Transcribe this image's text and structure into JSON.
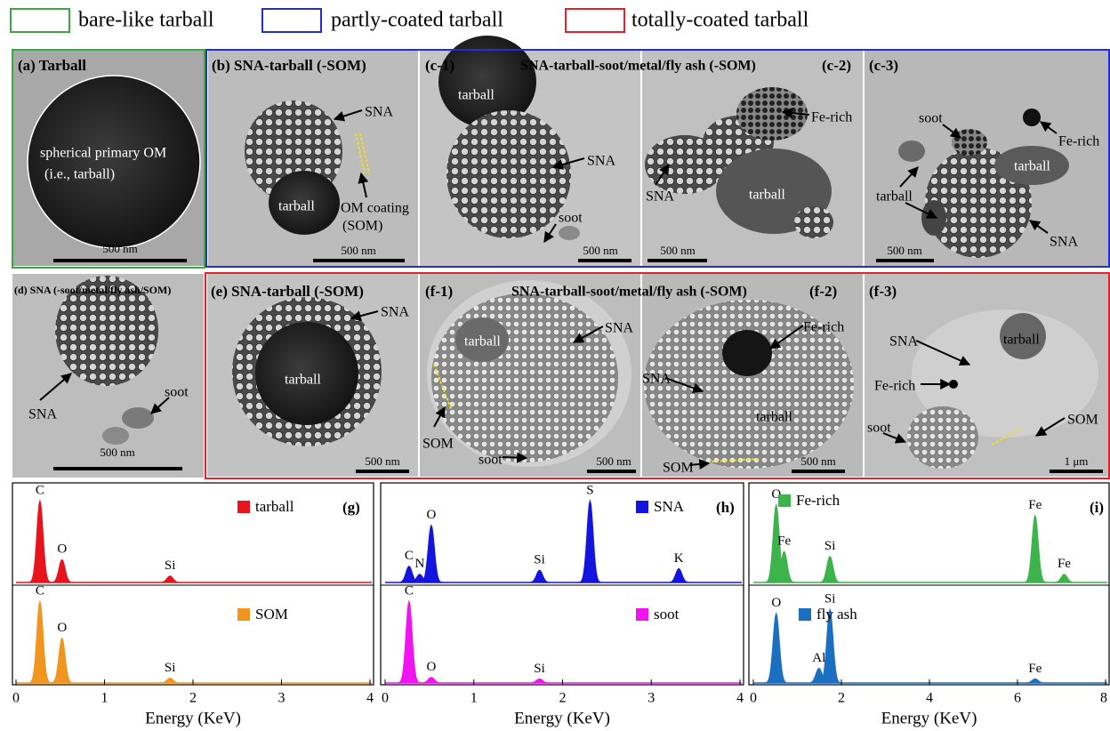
{
  "legend": [
    {
      "label": "bare-like tarball",
      "color": "#3da842"
    },
    {
      "label": "partly-coated tarball",
      "color": "#1f2fd0"
    },
    {
      "label": "totally-coated tarball",
      "color": "#e0242a"
    }
  ],
  "group_titles": [
    "SNA-tarball-soot/metal/fly ash (-SOM)",
    "SNA-tarball-soot/metal/fly ash (-SOM)"
  ],
  "panels": [
    {
      "label": "(a) Tarball",
      "annotations": [
        "spherical primary OM",
        "(i.e., tarball)"
      ],
      "scale_bar": "500 nm"
    },
    {
      "label": "(b) SNA-tarball (-SOM)",
      "annotations": [
        "SNA",
        "tarball",
        "OM coating",
        "(SOM)"
      ],
      "scale_bar": "500 nm"
    },
    {
      "label": "(c-1)",
      "annotations": [
        "tarball",
        "SNA",
        "soot"
      ],
      "scale_bar": "500 nm"
    },
    {
      "label": "(c-2)",
      "annotations": [
        "Fe-rich",
        "SNA",
        "tarball"
      ],
      "scale_bar": "500 nm"
    },
    {
      "label": "(c-3)",
      "annotations": [
        "soot",
        "Fe-rich",
        "tarball",
        "tarball",
        "SNA"
      ],
      "scale_bar": "500 nm"
    },
    {
      "label": "(d) SNA (-soot/metal/fly ash/SOM)",
      "annotations": [
        "SNA",
        "soot"
      ],
      "scale_bar": "500 nm"
    },
    {
      "label": "(e) SNA-tarball (-SOM)",
      "annotations": [
        "SNA",
        "tarball"
      ],
      "scale_bar": "500 nm"
    },
    {
      "label": "(f-1)",
      "annotations": [
        "tarball",
        "SNA",
        "SOM",
        "soot"
      ],
      "scale_bar": "500 nm"
    },
    {
      "label": "(f-2)",
      "annotations": [
        "Fe-rich",
        "SNA",
        "tarball",
        "SOM"
      ],
      "scale_bar": "500 nm"
    },
    {
      "label": "(f-3)",
      "annotations": [
        "SNA",
        "tarball",
        "Fe-rich",
        "SOM",
        "soot"
      ],
      "scale_bar": "1 μm"
    }
  ],
  "spectra": [
    {
      "label": "(g)",
      "xlim": [
        0,
        4
      ],
      "xticks": [
        0,
        1,
        2,
        3,
        4
      ],
      "xlabel": "Energy (KeV)",
      "traces": [
        {
          "name": "tarball",
          "color": "#e8141c",
          "peaks": [
            {
              "element": "C",
              "energy": 0.27,
              "height": 1.0
            },
            {
              "element": "O",
              "energy": 0.52,
              "height": 0.28
            },
            {
              "element": "Si",
              "energy": 1.74,
              "height": 0.08
            }
          ]
        },
        {
          "name": "SOM",
          "color": "#f0961e",
          "peaks": [
            {
              "element": "C",
              "energy": 0.27,
              "height": 1.0
            },
            {
              "element": "O",
              "energy": 0.52,
              "height": 0.55
            },
            {
              "element": "Si",
              "energy": 1.74,
              "height": 0.06
            }
          ]
        }
      ]
    },
    {
      "label": "(h)",
      "xlim": [
        0,
        4
      ],
      "xticks": [
        0,
        1,
        2,
        3,
        4
      ],
      "xlabel": "Energy (KeV)",
      "traces": [
        {
          "name": "SNA",
          "color": "#1414e0",
          "peaks": [
            {
              "element": "C",
              "energy": 0.27,
              "height": 0.2
            },
            {
              "element": "N",
              "energy": 0.39,
              "height": 0.1
            },
            {
              "element": "O",
              "energy": 0.52,
              "height": 0.7
            },
            {
              "element": "Si",
              "energy": 1.74,
              "height": 0.15
            },
            {
              "element": "S",
              "energy": 2.31,
              "height": 1.0
            },
            {
              "element": "K",
              "energy": 3.31,
              "height": 0.17
            }
          ]
        },
        {
          "name": "soot",
          "color": "#f014f0",
          "peaks": [
            {
              "element": "C",
              "energy": 0.27,
              "height": 1.0
            },
            {
              "element": "O",
              "energy": 0.52,
              "height": 0.07
            },
            {
              "element": "Si",
              "energy": 1.74,
              "height": 0.05
            }
          ]
        }
      ]
    },
    {
      "label": "(i)",
      "xlim": [
        0,
        8
      ],
      "xticks": [
        0,
        2,
        4,
        6,
        8
      ],
      "xlabel": "Energy (KeV)",
      "traces": [
        {
          "name": "Fe-rich",
          "color": "#3cb44b",
          "peaks": [
            {
              "element": "O",
              "energy": 0.52,
              "height": 0.95
            },
            {
              "element": "Fe",
              "energy": 0.7,
              "height": 0.38
            },
            {
              "element": "Si",
              "energy": 1.74,
              "height": 0.32
            },
            {
              "element": "Fe",
              "energy": 6.4,
              "height": 0.82
            },
            {
              "element": "Fe",
              "energy": 7.06,
              "height": 0.1
            }
          ]
        },
        {
          "name": "fly ash",
          "color": "#1a6fc0",
          "peaks": [
            {
              "element": "O",
              "energy": 0.52,
              "height": 0.85
            },
            {
              "element": "Al",
              "energy": 1.49,
              "height": 0.18
            },
            {
              "element": "Si",
              "energy": 1.74,
              "height": 0.9
            },
            {
              "element": "Fe",
              "energy": 6.4,
              "height": 0.05
            }
          ]
        }
      ]
    }
  ]
}
